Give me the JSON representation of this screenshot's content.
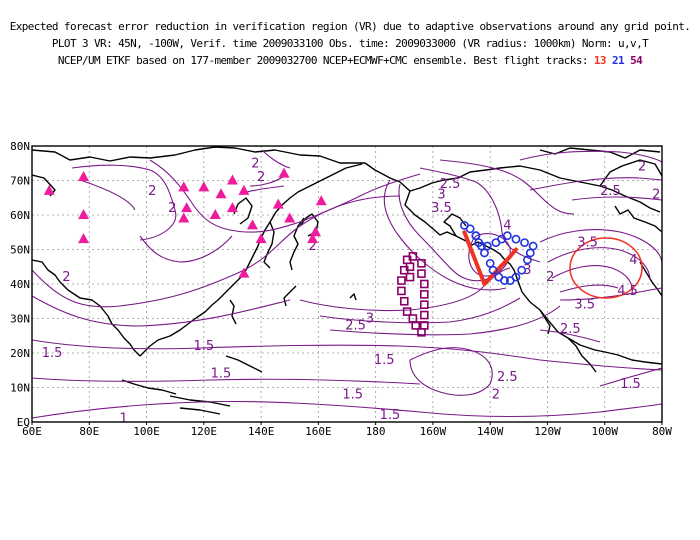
{
  "header": {
    "line1": "Expected forecast error reduction in verification region (VR) due to adaptive observations around any grid point.",
    "line2": "PLOT 3 VR: 45N, -100W, Verif. time 2009033100 Obs. time: 2009033000 (VR radius: 1000km) Norm: u,v,T",
    "line3_prefix": "NCEP/UM ETKF based on 177-member 2009032700 NCEP+ECMWF+CMC ensemble. Best flight tracks:",
    "tracks": [
      {
        "label": "13",
        "color": "#ee3322"
      },
      {
        "label": "21",
        "color": "#2233dd"
      },
      {
        "label": "54",
        "color": "#880066"
      }
    ]
  },
  "map": {
    "lon_range": [
      60,
      280
    ],
    "lat_range": [
      0,
      80
    ],
    "x_ticks": [
      "60E",
      "80E",
      "100E",
      "120E",
      "140E",
      "160E",
      "180",
      "160W",
      "140W",
      "120W",
      "100W",
      "80W"
    ],
    "y_ticks": [
      "EQ",
      "10N",
      "20N",
      "30N",
      "40N",
      "50N",
      "60N",
      "70N",
      "80N"
    ],
    "contour_color": "#7a1a88",
    "contour_labels": [
      {
        "text": "2",
        "lon": 102,
        "lat": 67
      },
      {
        "text": "2",
        "lon": 138,
        "lat": 75
      },
      {
        "text": "2",
        "lon": 140,
        "lat": 71
      },
      {
        "text": "2",
        "lon": 109,
        "lat": 62
      },
      {
        "text": "2",
        "lon": 72,
        "lat": 42
      },
      {
        "text": "2",
        "lon": 158,
        "lat": 51
      },
      {
        "text": "2",
        "lon": 273,
        "lat": 74
      },
      {
        "text": "2",
        "lon": 288,
        "lat": 66
      },
      {
        "text": "2",
        "lon": 222,
        "lat": 8
      },
      {
        "text": "2",
        "lon": 241,
        "lat": 42
      },
      {
        "text": "2.5",
        "lon": 206,
        "lat": 69
      },
      {
        "text": "2.5",
        "lon": 262,
        "lat": 67
      },
      {
        "text": "2.5",
        "lon": 173,
        "lat": 28
      },
      {
        "text": "2.5",
        "lon": 248,
        "lat": 27
      },
      {
        "text": "2.5",
        "lon": 226,
        "lat": 13
      },
      {
        "text": "3",
        "lon": 203,
        "lat": 66
      },
      {
        "text": "3",
        "lon": 178,
        "lat": 30
      },
      {
        "text": "3.5",
        "lon": 203,
        "lat": 62
      },
      {
        "text": "3.5",
        "lon": 254,
        "lat": 52
      },
      {
        "text": "3.5",
        "lon": 253,
        "lat": 34
      },
      {
        "text": "4",
        "lon": 226,
        "lat": 57
      },
      {
        "text": "4",
        "lon": 270,
        "lat": 47
      },
      {
        "text": "4.5",
        "lon": 268,
        "lat": 38
      },
      {
        "text": "3",
        "lon": 233,
        "lat": 44
      },
      {
        "text": "1.5",
        "lon": 67,
        "lat": 20
      },
      {
        "text": "1.5",
        "lon": 120,
        "lat": 22
      },
      {
        "text": "1.5",
        "lon": 126,
        "lat": 14
      },
      {
        "text": "1.5",
        "lon": 183,
        "lat": 18
      },
      {
        "text": "1.5",
        "lon": 172,
        "lat": 8
      },
      {
        "text": "1.5",
        "lon": 185,
        "lat": 2
      },
      {
        "text": "1.5",
        "lon": 269,
        "lat": 11
      },
      {
        "text": "1",
        "lon": 92,
        "lat": 1
      }
    ],
    "markers": {
      "triangles_color": "#ee1c9c",
      "triangles": [
        [
          66,
          67
        ],
        [
          78,
          71
        ],
        [
          78,
          60
        ],
        [
          78,
          53
        ],
        [
          113,
          68
        ],
        [
          114,
          62
        ],
        [
          113,
          59
        ],
        [
          120,
          68
        ],
        [
          124,
          60
        ],
        [
          126,
          66
        ],
        [
          130,
          70
        ],
        [
          130,
          62
        ],
        [
          134,
          67
        ],
        [
          134,
          43
        ],
        [
          137,
          57
        ],
        [
          140,
          53
        ],
        [
          146,
          63
        ],
        [
          148,
          72
        ],
        [
          150,
          59
        ],
        [
          161,
          64
        ],
        [
          159,
          55
        ],
        [
          158,
          53
        ]
      ],
      "tracks": [
        {
          "name": "track-13",
          "color": "#ee3322",
          "symbol": "line",
          "points": [
            [
              211,
              55
            ],
            [
              218,
              40
            ],
            [
              227,
              48
            ],
            [
              229,
              50
            ]
          ]
        },
        {
          "name": "track-21",
          "color": "#2233dd",
          "symbol": "circle",
          "points": [
            [
              211,
              57
            ],
            [
              213,
              56
            ],
            [
              215,
              54
            ],
            [
              217,
              51
            ],
            [
              218,
              49
            ],
            [
              220,
              46
            ],
            [
              221,
              44
            ],
            [
              223,
              42
            ],
            [
              225,
              41
            ],
            [
              227,
              41
            ],
            [
              229,
              42
            ],
            [
              231,
              44
            ],
            [
              233,
              47
            ],
            [
              234,
              49
            ],
            [
              235,
              51
            ],
            [
              232,
              52
            ],
            [
              229,
              53
            ],
            [
              226,
              54
            ],
            [
              224,
              53
            ],
            [
              222,
              52
            ],
            [
              219,
              51
            ],
            [
              215,
              54
            ],
            [
              216,
              52
            ]
          ]
        },
        {
          "name": "track-54",
          "color": "#880066",
          "symbol": "square",
          "points": [
            [
              191,
              47
            ],
            [
              190,
              44
            ],
            [
              189,
              41
            ],
            [
              189,
              38
            ],
            [
              190,
              35
            ],
            [
              191,
              32
            ],
            [
              193,
              30
            ],
            [
              194,
              28
            ],
            [
              196,
              26
            ],
            [
              197,
              28
            ],
            [
              197,
              31
            ],
            [
              197,
              34
            ],
            [
              197,
              37
            ],
            [
              197,
              40
            ],
            [
              196,
              43
            ],
            [
              196,
              46
            ],
            [
              193,
              48
            ],
            [
              192,
              45
            ],
            [
              192,
              42
            ]
          ]
        }
      ],
      "vr_circle": {
        "center_lon": 260,
        "center_lat": 45,
        "color": "#ee3322"
      }
    }
  }
}
